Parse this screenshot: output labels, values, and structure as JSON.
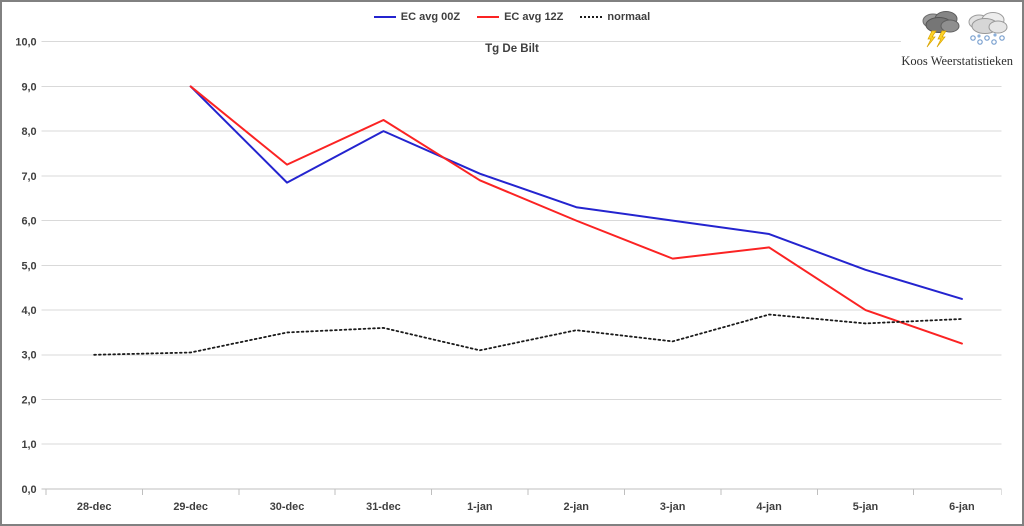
{
  "header": {
    "title": "Tg De Bilt",
    "legend": [
      {
        "label": "EC avg 00Z",
        "color": "#2424cf",
        "style": "solid"
      },
      {
        "label": "EC avg 12Z",
        "color": "#fb2323",
        "style": "solid"
      },
      {
        "label": "normaal",
        "color": "#1a1a1a",
        "style": "dotted"
      }
    ]
  },
  "branding": {
    "name": "Koos Weerstatistieken",
    "icons": [
      "storm-cloud-lightning-icon",
      "cloud-snow-hail-icon"
    ]
  },
  "axes": {
    "y_tick_labels": [
      "10,0",
      "9,0",
      "8,0",
      "7,0",
      "6,0",
      "5,0",
      "4,0",
      "3,0",
      "2,0",
      "1,0",
      "0,0"
    ],
    "x_tick_labels": [
      "28-dec",
      "29-dec",
      "30-dec",
      "31-dec",
      "1-jan",
      "2-jan",
      "3-jan",
      "4-jan",
      "5-jan",
      "6-jan"
    ]
  },
  "chart_data": {
    "type": "line",
    "title": "Tg De Bilt",
    "categories": [
      "28-dec",
      "29-dec",
      "30-dec",
      "31-dec",
      "1-jan",
      "2-jan",
      "3-jan",
      "4-jan",
      "5-jan",
      "6-jan"
    ],
    "series": [
      {
        "name": "EC avg 00Z",
        "color": "#2424cf",
        "line_style": "solid",
        "values": [
          null,
          9.0,
          6.85,
          8.0,
          7.05,
          6.3,
          6.0,
          5.7,
          4.9,
          4.25
        ]
      },
      {
        "name": "EC avg 12Z",
        "color": "#fb2323",
        "line_style": "solid",
        "values": [
          null,
          9.0,
          7.25,
          8.25,
          6.9,
          6.0,
          5.15,
          5.4,
          4.0,
          3.25
        ]
      },
      {
        "name": "normaal",
        "color": "#1a1a1a",
        "line_style": "dotted",
        "values": [
          3.0,
          3.05,
          3.5,
          3.6,
          3.1,
          3.55,
          3.3,
          3.9,
          3.7,
          3.8
        ]
      }
    ],
    "ylim": [
      0,
      10
    ],
    "ytick_step": 1,
    "decimal_separator": ",",
    "grid": "horizontal-only",
    "legend_position": "top-center",
    "colors": {
      "gridline": "#d9d9d9",
      "axis_and_ticks": "#bfbfbf",
      "tick_label_text": "#3f3f3f"
    }
  }
}
